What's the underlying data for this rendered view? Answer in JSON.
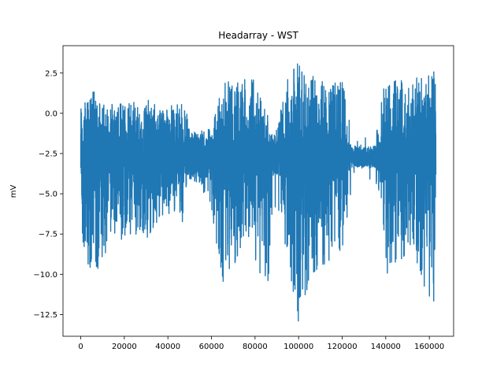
{
  "chart_data": {
    "type": "line",
    "title": "Headarray - WST",
    "xlabel": "",
    "ylabel": "mV",
    "xlim": [
      -8150,
      171150
    ],
    "ylim": [
      -13.85,
      4.2
    ],
    "x_ticks": [
      0,
      20000,
      40000,
      60000,
      80000,
      100000,
      120000,
      140000,
      160000
    ],
    "y_ticks": [
      2.5,
      0.0,
      -2.5,
      -5.0,
      -7.5,
      -10.0,
      -12.5
    ],
    "x_tick_labels": [
      "0",
      "20000",
      "40000",
      "60000",
      "80000",
      "100000",
      "120000",
      "140000",
      "160000"
    ],
    "y_tick_labels": [
      "2.5",
      "0.0",
      "−2.5",
      "−5.0",
      "−7.5",
      "−10.0",
      "−12.5"
    ],
    "grid": false,
    "series": [
      {
        "color": "#1f77b4",
        "x_start": 0,
        "x_end": 163000,
        "x": [
          0,
          6000,
          10000,
          15000,
          20000,
          25000,
          30000,
          35000,
          40000,
          45000,
          48500,
          50000,
          55000,
          60000,
          65000,
          70000,
          75000,
          80000,
          85000,
          90000,
          95000,
          100000,
          105000,
          110000,
          115000,
          120000,
          125000,
          130000,
          135000,
          140000,
          145000,
          150000,
          155000,
          160000,
          163000
        ],
        "upper": [
          0.6,
          1.4,
          1.0,
          0.8,
          0.6,
          0.9,
          0.9,
          0.5,
          0.6,
          0.6,
          0.6,
          -1.2,
          -0.8,
          -1.0,
          2.0,
          2.0,
          2.1,
          2.3,
          0.3,
          -0.9,
          2.1,
          3.4,
          2.4,
          2.1,
          2.0,
          2.1,
          -1.4,
          -1.3,
          -1.4,
          2.3,
          2.2,
          2.2,
          2.2,
          2.4,
          2.7
        ],
        "lower": [
          -7.8,
          -10.8,
          -9.0,
          -8.0,
          -8.5,
          -7.5,
          -8.0,
          -7.0,
          -6.5,
          -6.0,
          -7.8,
          -4.0,
          -4.5,
          -6.0,
          -11.0,
          -9.5,
          -9.0,
          -9.0,
          -11.5,
          -6.5,
          -9.0,
          -13.1,
          -10.3,
          -10.0,
          -9.0,
          -8.5,
          -4.5,
          -4.3,
          -4.5,
          -10.0,
          -9.5,
          -9.0,
          -9.5,
          -12.2,
          -12.7
        ],
        "band_high": [
          -1.3,
          -1.0,
          -1.2,
          -1.3,
          -1.3,
          -1.3,
          -1.3,
          -1.3,
          -1.4,
          -1.5,
          -1.5,
          -1.4,
          -1.5,
          -1.5,
          -1.4,
          -1.3,
          -1.3,
          -1.3,
          -1.6,
          -1.8,
          -1.5,
          -1.3,
          -1.3,
          -1.3,
          -1.4,
          -1.6,
          -2.0,
          -2.1,
          -2.0,
          -1.5,
          -1.4,
          -1.5,
          -1.6,
          -1.3,
          -1.3
        ],
        "band_low": [
          -4.3,
          -4.8,
          -4.5,
          -4.3,
          -4.3,
          -4.3,
          -4.3,
          -4.3,
          -4.2,
          -4.0,
          -4.0,
          -4.1,
          -4.0,
          -4.0,
          -4.2,
          -4.3,
          -4.3,
          -4.3,
          -4.0,
          -3.8,
          -4.2,
          -4.5,
          -4.5,
          -4.4,
          -4.2,
          -3.9,
          -3.4,
          -3.3,
          -3.4,
          -4.1,
          -4.1,
          -4.0,
          -3.9,
          -4.4,
          -4.5
        ],
        "spike_rate": [
          0.45,
          0.6,
          0.55,
          0.5,
          0.55,
          0.5,
          0.5,
          0.45,
          0.4,
          0.35,
          0.35,
          0.12,
          0.18,
          0.2,
          0.5,
          0.55,
          0.55,
          0.55,
          0.35,
          0.15,
          0.55,
          0.65,
          0.6,
          0.55,
          0.5,
          0.45,
          0.03,
          0.03,
          0.03,
          0.55,
          0.55,
          0.5,
          0.45,
          0.55,
          0.6
        ]
      }
    ]
  }
}
